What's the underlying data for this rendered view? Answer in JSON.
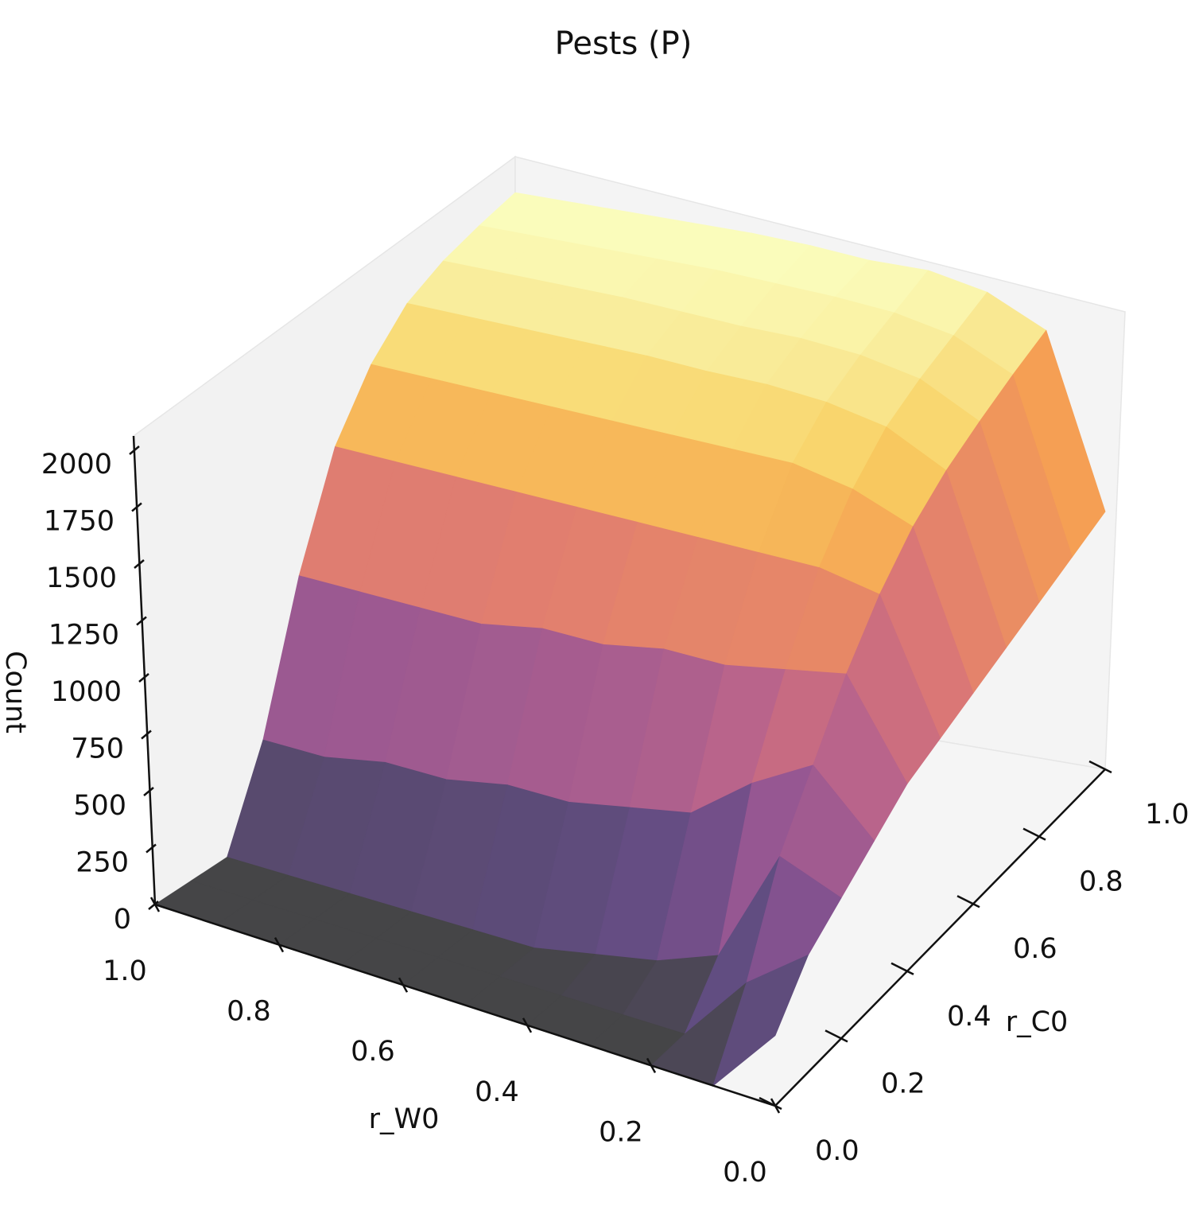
{
  "chart_data": {
    "type": "surface",
    "title": "Pests (P)",
    "xlabel": "r_W0",
    "ylabel": "r_C0",
    "zlabel": "Count",
    "xlim": [
      0.0,
      1.0
    ],
    "ylim": [
      0.0,
      1.0
    ],
    "zlim": [
      0,
      2000
    ],
    "x_ticks": [
      "0.0",
      "0.2",
      "0.4",
      "0.6",
      "0.8",
      "1.0"
    ],
    "y_ticks": [
      "0.0",
      "0.2",
      "0.4",
      "0.6",
      "0.8",
      "1.0"
    ],
    "z_ticks": [
      "0",
      "250",
      "500",
      "750",
      "1000",
      "1250",
      "1500",
      "1750",
      "2000"
    ],
    "colormap": "inferno",
    "grid": false,
    "surface_grid": {
      "r_W0": [
        0.0,
        0.1,
        0.2,
        0.3,
        0.4,
        0.5,
        0.6,
        0.7,
        0.8,
        0.9,
        1.0
      ],
      "r_C0": [
        0.0,
        0.1,
        0.2,
        0.3,
        0.4,
        0.5,
        0.6,
        0.7,
        0.8,
        0.9,
        1.0
      ],
      "count": [
        [
          300,
          500,
          600,
          700,
          800,
          850,
          900,
          950,
          1000,
          1050,
          1100
        ],
        [
          0,
          300,
          700,
          950,
          1200,
          1400,
          1550,
          1650,
          1720,
          1780,
          1830
        ],
        [
          0,
          0,
          200,
          800,
          1150,
          1450,
          1650,
          1780,
          1850,
          1900,
          1950
        ],
        [
          0,
          0,
          100,
          600,
          1100,
          1450,
          1700,
          1830,
          1900,
          1950,
          2000
        ],
        [
          0,
          0,
          50,
          550,
          1100,
          1450,
          1700,
          1850,
          1920,
          1970,
          2000
        ],
        [
          0,
          0,
          0,
          500,
          1050,
          1450,
          1700,
          1850,
          1920,
          1980,
          2020
        ],
        [
          0,
          0,
          0,
          500,
          1050,
          1450,
          1700,
          1860,
          1930,
          1990,
          2030
        ],
        [
          0,
          0,
          0,
          450,
          1000,
          1450,
          1700,
          1860,
          1940,
          1990,
          2030
        ],
        [
          0,
          0,
          0,
          450,
          1000,
          1450,
          1700,
          1860,
          1940,
          1990,
          2030
        ],
        [
          0,
          0,
          0,
          400,
          1000,
          1450,
          1700,
          1860,
          1940,
          1990,
          2030
        ],
        [
          0,
          0,
          0,
          400,
          1000,
          1450,
          1700,
          1860,
          1940,
          1990,
          2030
        ]
      ]
    }
  }
}
